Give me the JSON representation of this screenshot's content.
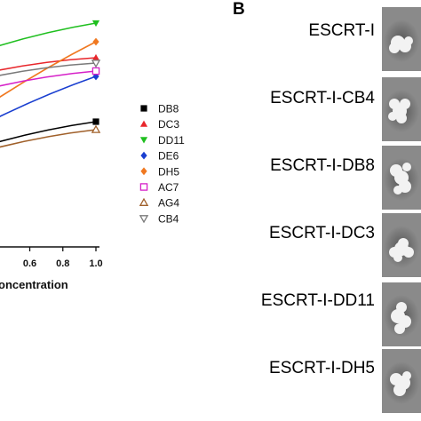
{
  "panel_b_letter": "B",
  "panel_b_rows": [
    {
      "label": "ESCRT-I"
    },
    {
      "label": "ESCRT-I-CB4"
    },
    {
      "label": "ESCRT-I-DB8"
    },
    {
      "label": "ESCRT-I-DC3"
    },
    {
      "label": "ESCRT-I-DD11"
    },
    {
      "label": "ESCRT-I-DH5"
    }
  ],
  "chart_data": {
    "type": "line",
    "xlabel": "oncentration",
    "x_ticks": [
      "0.6",
      "0.8",
      "1.0"
    ],
    "xlim": [
      0.42,
      1.0
    ],
    "ylim": [
      0,
      1
    ],
    "series": [
      {
        "name": "DB8",
        "color": "#000000",
        "marker": "square",
        "x": [
          0.42,
          1.0
        ],
        "y": [
          0.39,
          0.47
        ]
      },
      {
        "name": "DC3",
        "color": "#e8262b",
        "marker": "triangle-up",
        "x": [
          0.42,
          1.0
        ],
        "y": [
          0.66,
          0.71
        ]
      },
      {
        "name": "DD11",
        "color": "#1fbf1f",
        "marker": "triangle-down",
        "x": [
          0.42,
          1.0
        ],
        "y": [
          0.75,
          0.84
        ]
      },
      {
        "name": "DE6",
        "color": "#1a3fd0",
        "marker": "diamond",
        "x": [
          0.42,
          1.0
        ],
        "y": [
          0.48,
          0.64
        ]
      },
      {
        "name": "DH5",
        "color": "#f07820",
        "marker": "diamond",
        "x": [
          0.42,
          1.0
        ],
        "y": [
          0.55,
          0.77
        ]
      },
      {
        "name": "AC7",
        "color": "#d620c8",
        "marker": "square-open",
        "x": [
          0.42,
          1.0
        ],
        "y": [
          0.6,
          0.66
        ]
      },
      {
        "name": "AG4",
        "color": "#a0602a",
        "marker": "triangle-up-open",
        "x": [
          0.42,
          1.0
        ],
        "y": [
          0.37,
          0.44
        ]
      },
      {
        "name": "CB4",
        "color": "#7a7a7a",
        "marker": "triangle-down-open",
        "x": [
          0.42,
          1.0
        ],
        "y": [
          0.64,
          0.69
        ]
      }
    ]
  }
}
